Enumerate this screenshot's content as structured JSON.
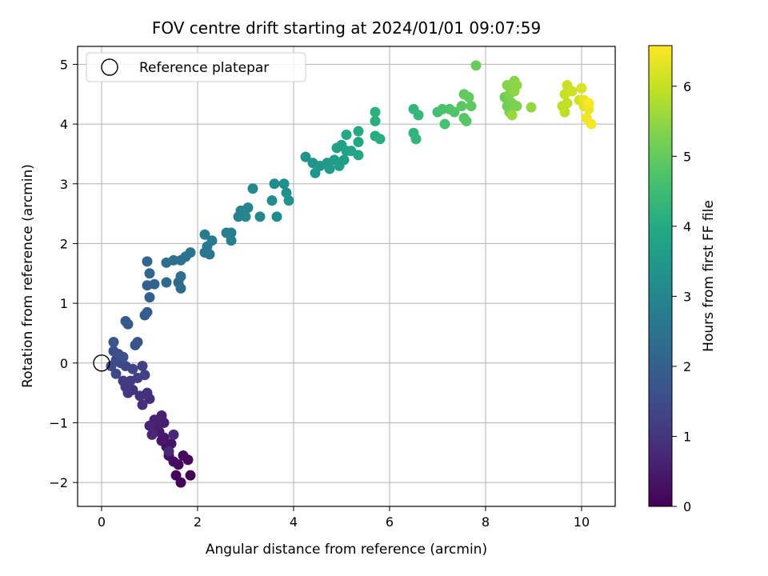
{
  "chart_data": {
    "type": "scatter",
    "title": "FOV centre drift starting at 2024/01/01 09:07:59",
    "xlabel": "Angular distance from reference (arcmin)",
    "ylabel": "Rotation from reference (arcmin)",
    "xlim": [
      -0.5,
      10.7
    ],
    "ylim": [
      -2.4,
      5.3
    ],
    "xticks": [
      0,
      2,
      4,
      6,
      8,
      10
    ],
    "yticks": [
      -2,
      -1,
      0,
      1,
      2,
      3,
      4,
      5
    ],
    "grid": true,
    "legend": {
      "placement": "upper-left",
      "entries": [
        "Reference platepar"
      ]
    },
    "reference_point": {
      "x": 0,
      "y": 0
    },
    "colorbar": {
      "label": "Hours from first FF file",
      "range": [
        0,
        6.58
      ],
      "ticks": [
        0,
        1,
        2,
        3,
        4,
        5,
        6
      ],
      "colormap": "viridis"
    },
    "points": [
      {
        "x": 1.85,
        "y": -1.88,
        "t": 0.0
      },
      {
        "x": 1.65,
        "y": -2.0,
        "t": 0.04
      },
      {
        "x": 1.55,
        "y": -1.88,
        "t": 0.08
      },
      {
        "x": 1.8,
        "y": -1.62,
        "t": 0.12
      },
      {
        "x": 1.7,
        "y": -1.55,
        "t": 0.16
      },
      {
        "x": 1.6,
        "y": -1.7,
        "t": 0.2
      },
      {
        "x": 1.5,
        "y": -1.65,
        "t": 0.24
      },
      {
        "x": 1.4,
        "y": -1.55,
        "t": 0.28
      },
      {
        "x": 1.35,
        "y": -1.4,
        "t": 0.32
      },
      {
        "x": 1.45,
        "y": -1.35,
        "t": 0.36
      },
      {
        "x": 1.3,
        "y": -1.25,
        "t": 0.4
      },
      {
        "x": 1.25,
        "y": -1.3,
        "t": 0.44
      },
      {
        "x": 1.2,
        "y": -1.15,
        "t": 0.48
      },
      {
        "x": 1.15,
        "y": -1.05,
        "t": 0.52
      },
      {
        "x": 1.3,
        "y": -1.0,
        "t": 0.56
      },
      {
        "x": 1.25,
        "y": -0.88,
        "t": 0.6
      },
      {
        "x": 1.1,
        "y": -0.95,
        "t": 0.64
      },
      {
        "x": 1.0,
        "y": -1.05,
        "t": 0.68
      },
      {
        "x": 1.05,
        "y": -1.2,
        "t": 0.72
      },
      {
        "x": 1.4,
        "y": -1.48,
        "t": 0.76
      },
      {
        "x": 1.5,
        "y": -1.2,
        "t": 0.8
      },
      {
        "x": 1.0,
        "y": -0.6,
        "t": 0.84
      },
      {
        "x": 0.85,
        "y": -0.7,
        "t": 0.88
      },
      {
        "x": 0.95,
        "y": -0.5,
        "t": 0.92
      },
      {
        "x": 0.8,
        "y": -0.55,
        "t": 0.96
      },
      {
        "x": 0.65,
        "y": -0.45,
        "t": 1.0
      },
      {
        "x": 0.55,
        "y": -0.5,
        "t": 1.04
      },
      {
        "x": 0.5,
        "y": -0.4,
        "t": 1.08
      },
      {
        "x": 0.45,
        "y": -0.3,
        "t": 1.12
      },
      {
        "x": 0.6,
        "y": -0.3,
        "t": 1.16
      },
      {
        "x": 0.75,
        "y": -0.25,
        "t": 1.2
      },
      {
        "x": 0.9,
        "y": -0.2,
        "t": 1.24
      },
      {
        "x": 0.85,
        "y": -0.05,
        "t": 1.28
      },
      {
        "x": 0.65,
        "y": -0.1,
        "t": 1.32
      },
      {
        "x": 0.5,
        "y": -0.05,
        "t": 1.36
      },
      {
        "x": 0.4,
        "y": 0.0,
        "t": 1.4
      },
      {
        "x": 0.3,
        "y": 0.05,
        "t": 1.44
      },
      {
        "x": 0.2,
        "y": -0.05,
        "t": 1.48
      },
      {
        "x": 0.3,
        "y": -0.18,
        "t": 1.52
      },
      {
        "x": 0.25,
        "y": 0.2,
        "t": 1.56
      },
      {
        "x": 0.35,
        "y": 0.15,
        "t": 1.6
      },
      {
        "x": 0.45,
        "y": 0.1,
        "t": 1.64
      },
      {
        "x": 0.7,
        "y": 0.3,
        "t": 1.68
      },
      {
        "x": 0.75,
        "y": 0.35,
        "t": 1.72
      },
      {
        "x": 0.25,
        "y": 0.35,
        "t": 1.76
      },
      {
        "x": 0.55,
        "y": 0.65,
        "t": 1.8
      },
      {
        "x": 0.5,
        "y": 0.7,
        "t": 1.84
      },
      {
        "x": 0.9,
        "y": 0.8,
        "t": 1.9
      },
      {
        "x": 0.95,
        "y": 0.85,
        "t": 1.96
      },
      {
        "x": 1.0,
        "y": 1.1,
        "t": 2.0
      },
      {
        "x": 0.95,
        "y": 1.3,
        "t": 2.04
      },
      {
        "x": 1.1,
        "y": 1.32,
        "t": 2.08
      },
      {
        "x": 1.0,
        "y": 1.5,
        "t": 2.12
      },
      {
        "x": 0.95,
        "y": 1.7,
        "t": 2.16
      },
      {
        "x": 1.35,
        "y": 1.35,
        "t": 2.2
      },
      {
        "x": 1.6,
        "y": 1.35,
        "t": 2.24
      },
      {
        "x": 1.65,
        "y": 1.25,
        "t": 2.28
      },
      {
        "x": 1.65,
        "y": 1.45,
        "t": 2.32
      },
      {
        "x": 1.35,
        "y": 1.68,
        "t": 2.36
      },
      {
        "x": 1.5,
        "y": 1.72,
        "t": 2.4
      },
      {
        "x": 1.65,
        "y": 1.72,
        "t": 2.44
      },
      {
        "x": 1.75,
        "y": 1.78,
        "t": 2.48
      },
      {
        "x": 1.85,
        "y": 1.85,
        "t": 2.52
      },
      {
        "x": 2.15,
        "y": 1.85,
        "t": 2.56
      },
      {
        "x": 2.25,
        "y": 1.82,
        "t": 2.6
      },
      {
        "x": 2.2,
        "y": 1.95,
        "t": 2.64
      },
      {
        "x": 2.3,
        "y": 2.05,
        "t": 2.68
      },
      {
        "x": 2.15,
        "y": 2.15,
        "t": 2.72
      },
      {
        "x": 2.6,
        "y": 2.18,
        "t": 2.76
      },
      {
        "x": 2.7,
        "y": 2.18,
        "t": 2.8
      },
      {
        "x": 2.7,
        "y": 2.05,
        "t": 2.84
      },
      {
        "x": 2.85,
        "y": 2.45,
        "t": 2.88
      },
      {
        "x": 2.9,
        "y": 2.55,
        "t": 2.92
      },
      {
        "x": 3.05,
        "y": 2.6,
        "t": 2.96
      },
      {
        "x": 3.0,
        "y": 2.45,
        "t": 3.0
      },
      {
        "x": 3.3,
        "y": 2.45,
        "t": 3.04
      },
      {
        "x": 3.15,
        "y": 2.92,
        "t": 3.08
      },
      {
        "x": 3.55,
        "y": 2.72,
        "t": 3.12
      },
      {
        "x": 3.65,
        "y": 2.45,
        "t": 3.16
      },
      {
        "x": 3.6,
        "y": 3.0,
        "t": 3.2
      },
      {
        "x": 3.8,
        "y": 3.0,
        "t": 3.24
      },
      {
        "x": 3.85,
        "y": 2.85,
        "t": 3.28
      },
      {
        "x": 3.9,
        "y": 2.72,
        "t": 3.32
      },
      {
        "x": 4.25,
        "y": 3.45,
        "t": 3.36
      },
      {
        "x": 4.4,
        "y": 3.35,
        "t": 3.4
      },
      {
        "x": 4.45,
        "y": 3.18,
        "t": 3.44
      },
      {
        "x": 4.55,
        "y": 3.3,
        "t": 3.48
      },
      {
        "x": 4.7,
        "y": 3.35,
        "t": 3.52
      },
      {
        "x": 4.75,
        "y": 3.25,
        "t": 3.56
      },
      {
        "x": 4.85,
        "y": 3.4,
        "t": 3.6
      },
      {
        "x": 4.95,
        "y": 3.3,
        "t": 3.64
      },
      {
        "x": 5.05,
        "y": 3.4,
        "t": 3.68
      },
      {
        "x": 4.9,
        "y": 3.6,
        "t": 3.72
      },
      {
        "x": 5.0,
        "y": 3.65,
        "t": 3.76
      },
      {
        "x": 5.1,
        "y": 3.55,
        "t": 3.8
      },
      {
        "x": 5.2,
        "y": 3.55,
        "t": 3.84
      },
      {
        "x": 5.35,
        "y": 3.48,
        "t": 3.88
      },
      {
        "x": 5.35,
        "y": 3.7,
        "t": 3.92
      },
      {
        "x": 5.1,
        "y": 3.82,
        "t": 3.96
      },
      {
        "x": 5.35,
        "y": 3.88,
        "t": 4.0
      },
      {
        "x": 5.7,
        "y": 3.8,
        "t": 4.04
      },
      {
        "x": 5.8,
        "y": 3.75,
        "t": 4.08
      },
      {
        "x": 5.7,
        "y": 4.05,
        "t": 4.12
      },
      {
        "x": 5.7,
        "y": 4.2,
        "t": 4.16
      },
      {
        "x": 6.5,
        "y": 3.85,
        "t": 4.24
      },
      {
        "x": 6.55,
        "y": 3.75,
        "t": 4.28
      },
      {
        "x": 6.5,
        "y": 4.25,
        "t": 4.32
      },
      {
        "x": 6.6,
        "y": 4.15,
        "t": 4.36
      },
      {
        "x": 7.0,
        "y": 4.2,
        "t": 4.6
      },
      {
        "x": 7.15,
        "y": 4.0,
        "t": 4.64
      },
      {
        "x": 7.1,
        "y": 4.25,
        "t": 4.68
      },
      {
        "x": 7.25,
        "y": 4.25,
        "t": 4.72
      },
      {
        "x": 7.35,
        "y": 4.2,
        "t": 4.76
      },
      {
        "x": 7.55,
        "y": 4.1,
        "t": 4.8
      },
      {
        "x": 7.6,
        "y": 4.05,
        "t": 4.84
      },
      {
        "x": 7.5,
        "y": 4.3,
        "t": 4.88
      },
      {
        "x": 7.7,
        "y": 4.3,
        "t": 4.92
      },
      {
        "x": 7.55,
        "y": 4.5,
        "t": 4.96
      },
      {
        "x": 7.65,
        "y": 4.45,
        "t": 5.0
      },
      {
        "x": 7.8,
        "y": 4.98,
        "t": 5.04
      },
      {
        "x": 8.4,
        "y": 4.45,
        "t": 5.12
      },
      {
        "x": 8.45,
        "y": 4.3,
        "t": 5.16
      },
      {
        "x": 8.5,
        "y": 4.2,
        "t": 5.2
      },
      {
        "x": 8.55,
        "y": 4.35,
        "t": 5.24
      },
      {
        "x": 8.65,
        "y": 4.3,
        "t": 5.28
      },
      {
        "x": 8.5,
        "y": 4.5,
        "t": 5.32
      },
      {
        "x": 8.45,
        "y": 4.65,
        "t": 5.36
      },
      {
        "x": 8.6,
        "y": 4.72,
        "t": 5.4
      },
      {
        "x": 8.65,
        "y": 4.65,
        "t": 5.44
      },
      {
        "x": 8.6,
        "y": 4.55,
        "t": 5.48
      },
      {
        "x": 8.95,
        "y": 4.28,
        "t": 5.52
      },
      {
        "x": 8.55,
        "y": 4.15,
        "t": 5.56
      },
      {
        "x": 9.6,
        "y": 4.3,
        "t": 5.9
      },
      {
        "x": 9.65,
        "y": 4.2,
        "t": 5.94
      },
      {
        "x": 9.7,
        "y": 4.35,
        "t": 5.98
      },
      {
        "x": 9.65,
        "y": 4.5,
        "t": 6.02
      },
      {
        "x": 9.7,
        "y": 4.65,
        "t": 6.06
      },
      {
        "x": 9.8,
        "y": 4.55,
        "t": 6.1
      },
      {
        "x": 9.95,
        "y": 4.4,
        "t": 6.16
      },
      {
        "x": 10.0,
        "y": 4.6,
        "t": 6.2
      },
      {
        "x": 10.05,
        "y": 4.3,
        "t": 6.26
      },
      {
        "x": 10.1,
        "y": 4.1,
        "t": 6.32
      },
      {
        "x": 10.05,
        "y": 4.4,
        "t": 6.36
      },
      {
        "x": 10.15,
        "y": 4.25,
        "t": 6.4
      },
      {
        "x": 10.1,
        "y": 4.1,
        "t": 6.44
      },
      {
        "x": 10.2,
        "y": 4.0,
        "t": 6.5
      },
      {
        "x": 10.15,
        "y": 4.35,
        "t": 6.54
      }
    ]
  }
}
